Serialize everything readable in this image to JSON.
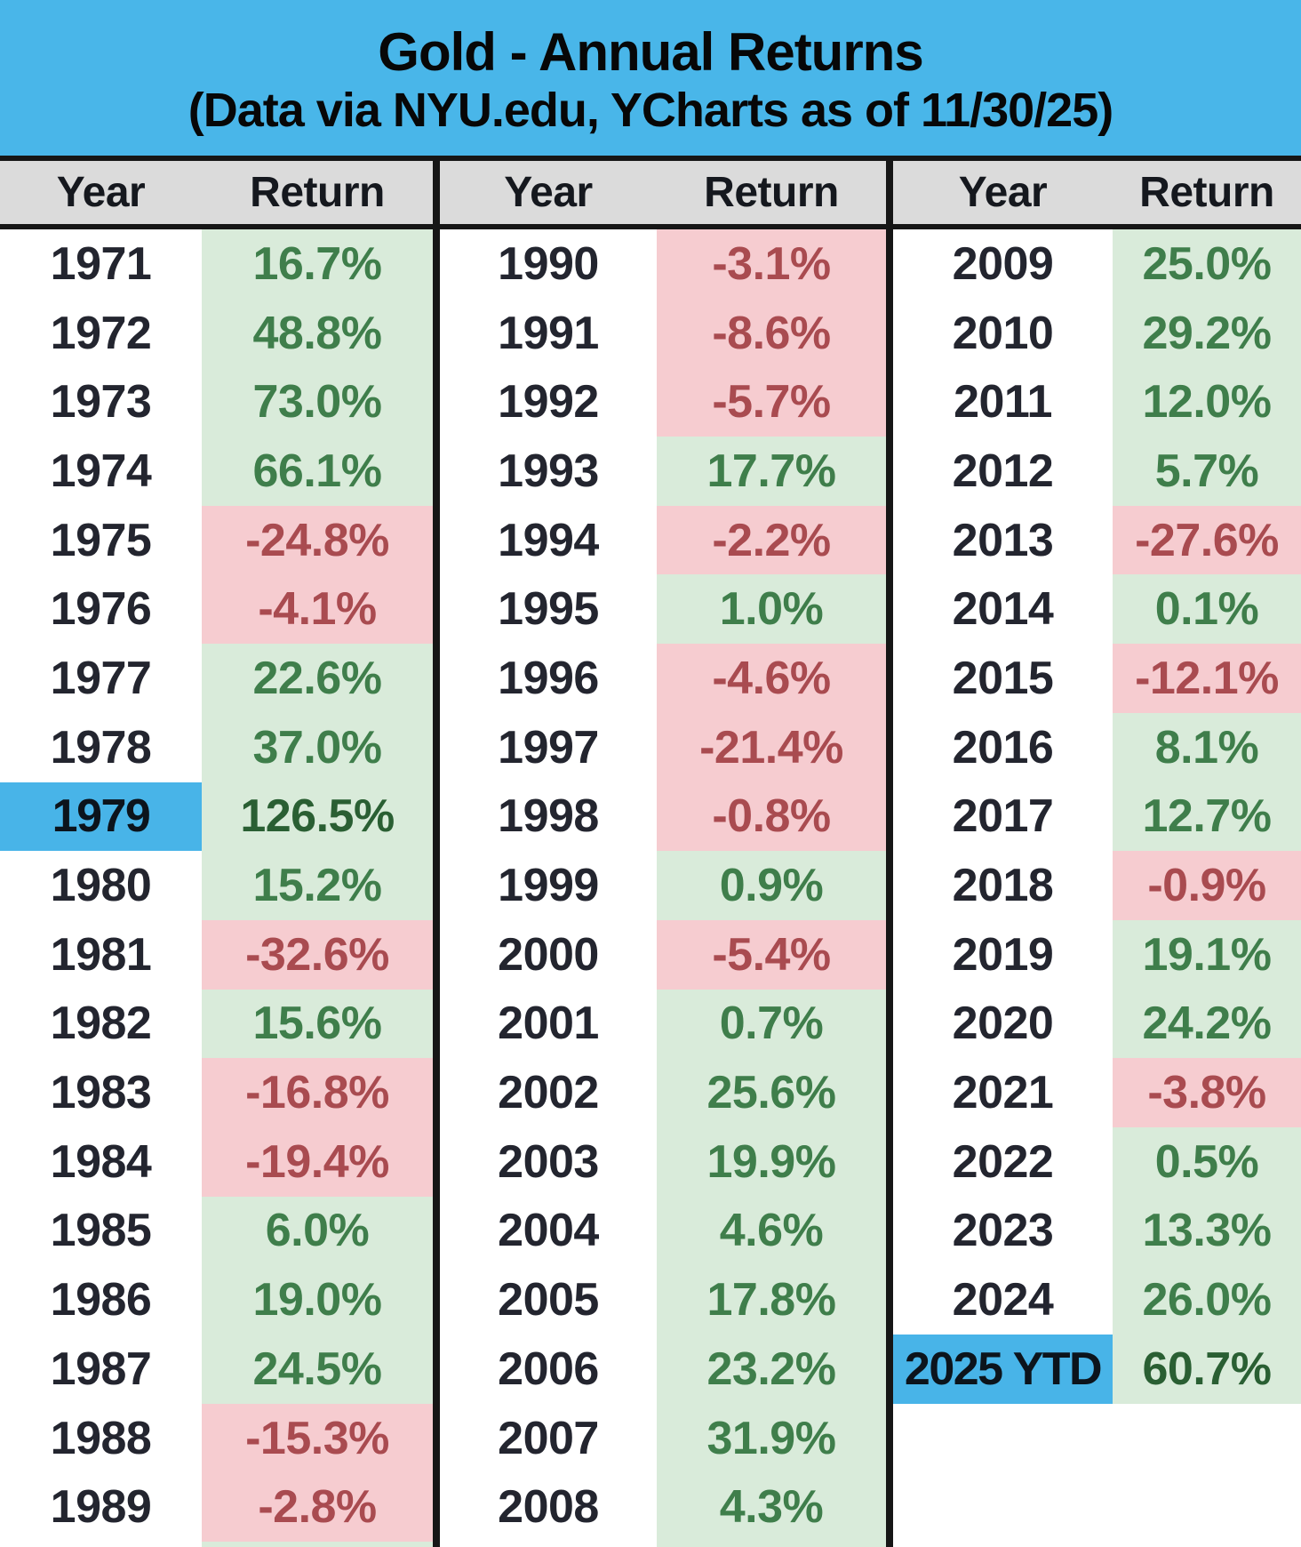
{
  "title": "Gold - Annual Returns",
  "subtitle": "(Data via NYU.edu, YCharts as of 11/30/25)",
  "column_headers": {
    "year": "Year",
    "return": "Return"
  },
  "highlighted_rows": [
    "1979",
    "2025 YTD"
  ],
  "colors": {
    "banner_blue": "#49B6E9",
    "highlight_blue": "#48B4E8",
    "header_gray": "#DBDBDB",
    "separator_black": "#161616",
    "positive_bg": "#D9EBDA",
    "positive_text": "#3F7E4B",
    "highlight_positive_text": "#2A5F33",
    "negative_bg": "#F6CCD0",
    "negative_text": "#A94B50",
    "year_text": "#23252F"
  },
  "groups": [
    {
      "name": "years-1971-1989",
      "rows": [
        {
          "year": "1971",
          "return": "16.7%"
        },
        {
          "year": "1972",
          "return": "48.8%"
        },
        {
          "year": "1973",
          "return": "73.0%"
        },
        {
          "year": "1974",
          "return": "66.1%"
        },
        {
          "year": "1975",
          "return": "-24.8%"
        },
        {
          "year": "1976",
          "return": "-4.1%"
        },
        {
          "year": "1977",
          "return": "22.6%"
        },
        {
          "year": "1978",
          "return": "37.0%"
        },
        {
          "year": "1979",
          "return": "126.5%",
          "highlight": true
        },
        {
          "year": "1980",
          "return": "15.2%"
        },
        {
          "year": "1981",
          "return": "-32.6%"
        },
        {
          "year": "1982",
          "return": "15.6%"
        },
        {
          "year": "1983",
          "return": "-16.8%"
        },
        {
          "year": "1984",
          "return": "-19.4%"
        },
        {
          "year": "1985",
          "return": "6.0%"
        },
        {
          "year": "1986",
          "return": "19.0%"
        },
        {
          "year": "1987",
          "return": "24.5%"
        },
        {
          "year": "1988",
          "return": "-15.3%"
        },
        {
          "year": "1989",
          "return": "-2.8%"
        }
      ]
    },
    {
      "name": "years-1990-2008",
      "rows": [
        {
          "year": "1990",
          "return": "-3.1%"
        },
        {
          "year": "1991",
          "return": "-8.6%"
        },
        {
          "year": "1992",
          "return": "-5.7%"
        },
        {
          "year": "1993",
          "return": "17.7%"
        },
        {
          "year": "1994",
          "return": "-2.2%"
        },
        {
          "year": "1995",
          "return": "1.0%"
        },
        {
          "year": "1996",
          "return": "-4.6%"
        },
        {
          "year": "1997",
          "return": "-21.4%"
        },
        {
          "year": "1998",
          "return": "-0.8%"
        },
        {
          "year": "1999",
          "return": "0.9%"
        },
        {
          "year": "2000",
          "return": "-5.4%"
        },
        {
          "year": "2001",
          "return": "0.7%"
        },
        {
          "year": "2002",
          "return": "25.6%"
        },
        {
          "year": "2003",
          "return": "19.9%"
        },
        {
          "year": "2004",
          "return": "4.6%"
        },
        {
          "year": "2005",
          "return": "17.8%"
        },
        {
          "year": "2006",
          "return": "23.2%"
        },
        {
          "year": "2007",
          "return": "31.9%"
        },
        {
          "year": "2008",
          "return": "4.3%"
        }
      ]
    },
    {
      "name": "years-2009-2025",
      "rows": [
        {
          "year": "2009",
          "return": "25.0%"
        },
        {
          "year": "2010",
          "return": "29.2%"
        },
        {
          "year": "2011",
          "return": "12.0%"
        },
        {
          "year": "2012",
          "return": "5.7%"
        },
        {
          "year": "2013",
          "return": "-27.6%"
        },
        {
          "year": "2014",
          "return": "0.1%"
        },
        {
          "year": "2015",
          "return": "-12.1%"
        },
        {
          "year": "2016",
          "return": "8.1%"
        },
        {
          "year": "2017",
          "return": "12.7%"
        },
        {
          "year": "2018",
          "return": "-0.9%"
        },
        {
          "year": "2019",
          "return": "19.1%"
        },
        {
          "year": "2020",
          "return": "24.2%"
        },
        {
          "year": "2021",
          "return": "-3.8%"
        },
        {
          "year": "2022",
          "return": "0.5%"
        },
        {
          "year": "2023",
          "return": "13.3%"
        },
        {
          "year": "2024",
          "return": "26.0%"
        },
        {
          "year": "2025 YTD",
          "return": "60.7%",
          "highlight": true
        },
        {
          "year": "",
          "return": ""
        },
        {
          "year": "",
          "return": ""
        }
      ]
    }
  ],
  "chart_data": {
    "type": "table",
    "title": "Gold - Annual Returns",
    "subtitle": "(Data via NYU.edu, YCharts as of 11/30/25)",
    "columns": [
      "Year",
      "Return %"
    ],
    "highlighted_rows": [
      "1979",
      "2025 YTD"
    ],
    "rows": [
      [
        "1971",
        16.7
      ],
      [
        "1972",
        48.8
      ],
      [
        "1973",
        73.0
      ],
      [
        "1974",
        66.1
      ],
      [
        "1975",
        -24.8
      ],
      [
        "1976",
        -4.1
      ],
      [
        "1977",
        22.6
      ],
      [
        "1978",
        37.0
      ],
      [
        "1979",
        126.5
      ],
      [
        "1980",
        15.2
      ],
      [
        "1981",
        -32.6
      ],
      [
        "1982",
        15.6
      ],
      [
        "1983",
        -16.8
      ],
      [
        "1984",
        -19.4
      ],
      [
        "1985",
        6.0
      ],
      [
        "1986",
        19.0
      ],
      [
        "1987",
        24.5
      ],
      [
        "1988",
        -15.3
      ],
      [
        "1989",
        -2.8
      ],
      [
        "1990",
        -3.1
      ],
      [
        "1991",
        -8.6
      ],
      [
        "1992",
        -5.7
      ],
      [
        "1993",
        17.7
      ],
      [
        "1994",
        -2.2
      ],
      [
        "1995",
        1.0
      ],
      [
        "1996",
        -4.6
      ],
      [
        "1997",
        -21.4
      ],
      [
        "1998",
        -0.8
      ],
      [
        "1999",
        0.9
      ],
      [
        "2000",
        -5.4
      ],
      [
        "2001",
        0.7
      ],
      [
        "2002",
        25.6
      ],
      [
        "2003",
        19.9
      ],
      [
        "2004",
        4.6
      ],
      [
        "2005",
        17.8
      ],
      [
        "2006",
        23.2
      ],
      [
        "2007",
        31.9
      ],
      [
        "2008",
        4.3
      ],
      [
        "2009",
        25.0
      ],
      [
        "2010",
        29.2
      ],
      [
        "2011",
        12.0
      ],
      [
        "2012",
        5.7
      ],
      [
        "2013",
        -27.6
      ],
      [
        "2014",
        0.1
      ],
      [
        "2015",
        -12.1
      ],
      [
        "2016",
        8.1
      ],
      [
        "2017",
        12.7
      ],
      [
        "2018",
        -0.9
      ],
      [
        "2019",
        19.1
      ],
      [
        "2020",
        24.2
      ],
      [
        "2021",
        -3.8
      ],
      [
        "2022",
        0.5
      ],
      [
        "2023",
        13.3
      ],
      [
        "2024",
        26.0
      ],
      [
        "2025 YTD",
        60.7
      ]
    ]
  }
}
